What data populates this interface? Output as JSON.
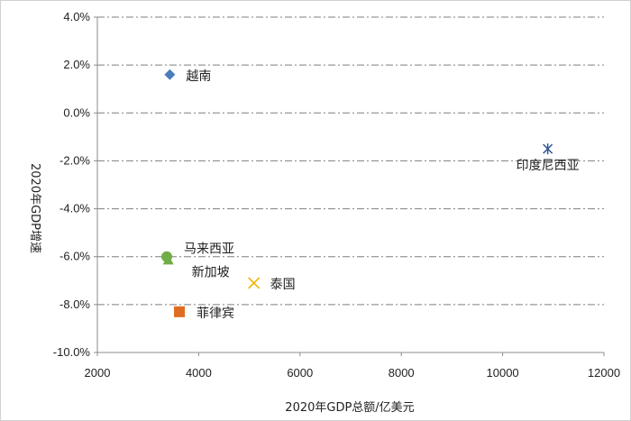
{
  "chart_data": {
    "type": "scatter",
    "xlabel": "2020年GDP总额/亿美元",
    "ylabel": "2020年GDP增速",
    "xlim": [
      2000,
      12000
    ],
    "ylim": [
      -10,
      4
    ],
    "x_ticks": [
      "2000",
      "4000",
      "6000",
      "8000",
      "10000",
      "12000"
    ],
    "y_ticks": [
      "4.0%",
      "2.0%",
      "0.0%",
      "-2.0%",
      "-4.0%",
      "-6.0%",
      "-8.0%",
      "-10.0%"
    ],
    "grid": {
      "horizontal": true,
      "style": "dash-dot"
    },
    "points": [
      {
        "label": "越南",
        "x": 3430,
        "y": 1.6,
        "marker": "diamond",
        "color": "#4a7ebb"
      },
      {
        "label": "印度尼西亚",
        "x": 10890,
        "y": -1.5,
        "marker": "asterisk",
        "color": "#2f5597"
      },
      {
        "label": "马来西亚",
        "x": 3370,
        "y": -6.0,
        "marker": "circle",
        "color": "#70ad47"
      },
      {
        "label": "新加坡",
        "x": 3400,
        "y": -6.1,
        "marker": "triangle",
        "color": "#70ad47"
      },
      {
        "label": "泰国",
        "x": 5090,
        "y": -7.1,
        "marker": "x",
        "color": "#f0b400"
      },
      {
        "label": "菲律宾",
        "x": 3620,
        "y": -8.3,
        "marker": "square",
        "color": "#e06c1f"
      }
    ]
  }
}
